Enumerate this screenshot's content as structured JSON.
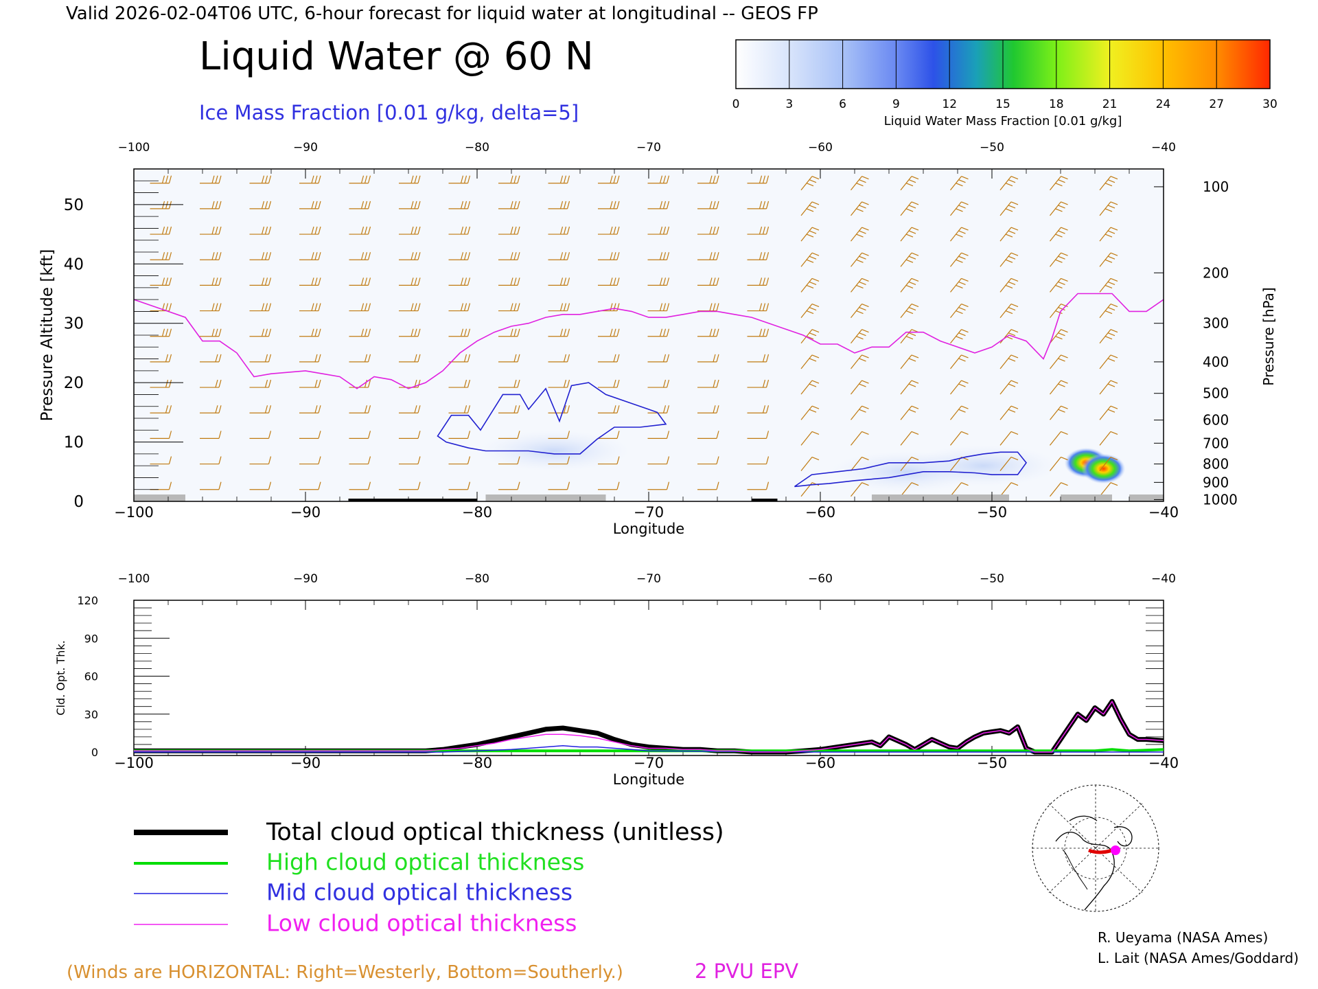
{
  "header": {
    "valid_line": "Valid 2026-02-04T06 UTC, 6-hour forecast for liquid water at longitudinal -- GEOS FP",
    "title": "Liquid Water @ 60 N",
    "subtitle": "Ice Mass Fraction [0.01 g/kg, delta=5]"
  },
  "colorbar": {
    "ticks": [
      "0",
      "3",
      "6",
      "9",
      "12",
      "15",
      "18",
      "21",
      "24",
      "27",
      "30"
    ],
    "label": "Liquid Water Mass Fraction [0.01 g/kg]",
    "colors": [
      "#f4f7fd",
      "#b9cffa",
      "#98b5f5",
      "#4d6ff0",
      "#1b9fd8",
      "#28c528",
      "#88f018",
      "#f0f020",
      "#ffc000",
      "#ff8c00",
      "#ff3000"
    ]
  },
  "chart_data": [
    {
      "type": "heatmap",
      "title": "Liquid Water @ 60 N",
      "xlabel": "Longitude",
      "ylabel": "Pressure Altitude [kft]",
      "y2label": "Pressure [hPa]",
      "xlim": [
        -100,
        -40
      ],
      "ylim": [
        0,
        56
      ],
      "x_ticks": [
        "−100",
        "−90",
        "−80",
        "−70",
        "−60",
        "−50",
        "−40"
      ],
      "y_ticks": [
        "0",
        "10",
        "20",
        "30",
        "40",
        "50"
      ],
      "pressure_ticks": [
        "100",
        "200",
        "300",
        "400",
        "500",
        "600",
        "700",
        "800",
        "900",
        "1000"
      ],
      "pressure_tick_kft": [
        53,
        38.5,
        30,
        23.5,
        18.2,
        13.7,
        9.8,
        6.3,
        3.2,
        0.3
      ],
      "epv_2pvu": {
        "name": "2 PVU EPV",
        "color": "#e020e0",
        "x": [
          -100,
          -98,
          -97,
          -96,
          -95,
          -94,
          -93,
          -92,
          -90,
          -89,
          -88,
          -87,
          -86,
          -85,
          -84,
          -83,
          -82,
          -81,
          -80,
          -79,
          -78,
          -77,
          -76,
          -75,
          -74,
          -73,
          -72,
          -71,
          -70,
          -69,
          -68,
          -67,
          -66,
          -65,
          -64,
          -63,
          -62,
          -61,
          -60,
          -59,
          -58,
          -57,
          -56,
          -55,
          -54,
          -53,
          -52,
          -51,
          -50,
          -49,
          -48,
          -47,
          -46.5,
          -46,
          -45,
          -44,
          -43,
          -42,
          -41,
          -40
        ],
        "y": [
          34,
          32,
          31,
          27,
          27,
          25,
          21,
          21.5,
          22,
          21.5,
          21,
          19,
          21,
          20.5,
          19,
          20,
          22,
          25,
          27,
          28.5,
          29.5,
          30,
          31,
          31.5,
          31.5,
          32,
          32.5,
          32,
          31,
          31,
          31.5,
          32,
          32,
          31.5,
          31,
          30,
          29,
          28,
          26.5,
          26.5,
          25,
          26,
          26,
          28.5,
          28.5,
          27,
          26,
          25,
          26,
          28,
          27,
          24,
          27.5,
          32,
          35,
          35,
          35,
          32,
          32,
          34
        ]
      },
      "mid_cloud_contours": [
        {
          "x": [
            -82.3,
            -81.5,
            -80.5,
            -79.8,
            -78.5,
            -77.5,
            -77.0,
            -76.0,
            -75.2,
            -74.5,
            -73.5,
            -72.5,
            -71.0,
            -70.0,
            -69.5,
            -69.0,
            -70.5,
            -72.0,
            -73.0,
            -74.0,
            -75.5,
            -77.0,
            -78.5,
            -79.5,
            -80.5,
            -81.8,
            -82.3
          ],
          "y": [
            11,
            14.5,
            14.5,
            12,
            18,
            18,
            15.5,
            19,
            13.5,
            19.5,
            20,
            18,
            16.5,
            15.5,
            15,
            13,
            12.5,
            12.5,
            10.5,
            8,
            8,
            8.5,
            8.5,
            8.5,
            9,
            10,
            11
          ]
        },
        {
          "x": [
            -61.5,
            -60.5,
            -59,
            -57.5,
            -56,
            -54,
            -52.5,
            -51.5,
            -50.5,
            -49.5,
            -48.5,
            -48,
            -48.5,
            -50,
            -51,
            -52.5,
            -54,
            -56,
            -58,
            -59.5,
            -60.5,
            -61.5
          ],
          "y": [
            2.5,
            4.5,
            5.0,
            5.5,
            6.5,
            6.5,
            6.8,
            7.5,
            8.0,
            8.3,
            8.3,
            6.5,
            4.5,
            4.5,
            4.8,
            5.0,
            5.0,
            4.0,
            3.5,
            3.0,
            2.8,
            2.5
          ]
        }
      ],
      "liquid_water_blobs": [
        {
          "lon": -75.5,
          "kft": 8.5,
          "value": 4
        },
        {
          "lon": -55,
          "kft": 5,
          "value": 6
        },
        {
          "lon": -50.5,
          "kft": 6,
          "value": 7
        },
        {
          "lon": -44.5,
          "kft": 6.5,
          "value": 25
        },
        {
          "lon": -43.5,
          "kft": 5.5,
          "value": 30
        }
      ],
      "wind_barb_color": "#c07a10"
    },
    {
      "type": "line",
      "xlabel": "Longitude",
      "ylabel": "Cld. Opt. Thk.",
      "xlim": [
        -100,
        -40
      ],
      "ylim": [
        0,
        120
      ],
      "x_ticks": [
        "−100",
        "−90",
        "−80",
        "−70",
        "−60",
        "−50",
        "−40"
      ],
      "y_ticks": [
        "0",
        "30",
        "60",
        "90",
        "120"
      ],
      "series": [
        {
          "name": "Total cloud optical thickness (unitless)",
          "color": "#000000",
          "x": [
            -100,
            -83,
            -82,
            -81,
            -80,
            -79,
            -78,
            -77,
            -76,
            -75,
            -74,
            -73,
            -72,
            -71,
            -70,
            -69,
            -68,
            -67,
            -66,
            -65,
            -64,
            -63,
            -62,
            -61,
            -60,
            -59,
            -58,
            -57,
            -56.5,
            -56,
            -55.5,
            -55,
            -54.5,
            -54,
            -53.5,
            -53,
            -52.5,
            -52,
            -51.5,
            -51,
            -50.5,
            -50,
            -49.5,
            -49,
            -48.5,
            -48,
            -47.5,
            -47,
            -46.5,
            -46,
            -45.5,
            -45,
            -44.5,
            -44,
            -43.5,
            -43,
            -42.5,
            -42,
            -41.5,
            -41,
            -40
          ],
          "y": [
            1,
            1,
            2,
            4,
            6,
            9,
            12,
            15,
            18,
            19,
            17,
            15,
            10,
            6,
            4,
            3,
            2,
            2,
            1,
            1,
            0,
            0,
            0,
            1,
            2,
            4,
            6,
            8,
            5,
            12,
            9,
            6,
            2,
            6,
            10,
            7,
            4,
            3,
            8,
            12,
            15,
            16,
            17,
            15,
            20,
            3,
            0,
            0,
            0,
            10,
            20,
            30,
            25,
            35,
            30,
            40,
            26,
            14,
            10,
            10,
            9
          ]
        },
        {
          "name": "High cloud optical thickness",
          "color": "#00dd00",
          "x": [
            -100,
            -90,
            -80,
            -70,
            -60,
            -50,
            -47,
            -46,
            -44,
            -43,
            -42,
            -40
          ],
          "y": [
            1,
            1,
            1,
            1,
            1,
            1,
            1,
            1,
            1,
            2,
            1,
            2
          ]
        },
        {
          "name": "Mid cloud optical thickness",
          "color": "#2020e0",
          "x": [
            -100,
            -82,
            -80,
            -78,
            -77,
            -76,
            -75,
            -74,
            -73,
            -72,
            -71,
            -70,
            -60,
            -40
          ],
          "y": [
            0,
            0,
            1,
            2,
            3,
            4,
            5,
            4,
            4,
            3,
            2,
            1,
            0,
            0
          ]
        },
        {
          "name": "Low cloud optical thickness",
          "color": "#f020f0",
          "x": [
            -100,
            -83,
            -82,
            -81,
            -80,
            -79,
            -78,
            -77,
            -76,
            -75,
            -74,
            -73,
            -72,
            -71,
            -70,
            -69,
            -68,
            -67,
            -66,
            -65,
            -64,
            -63,
            -62,
            -61,
            -60,
            -59,
            -58,
            -57,
            -56.5,
            -56,
            -55.5,
            -55,
            -54.5,
            -54,
            -53.5,
            -53,
            -52.5,
            -52,
            -51.5,
            -51,
            -50.5,
            -50,
            -49.5,
            -49,
            -48.5,
            -48,
            -47.5,
            -47,
            -46.5,
            -46,
            -45.5,
            -45,
            -44.5,
            -44,
            -43.5,
            -43,
            -42.5,
            -42,
            -41.5,
            -41,
            -40
          ],
          "y": [
            1,
            1,
            2,
            3,
            5,
            7,
            10,
            12,
            14,
            14,
            13,
            11,
            8,
            5,
            3,
            3,
            2,
            2,
            1,
            1,
            0,
            0,
            0,
            1,
            2,
            4,
            6,
            8,
            5,
            12,
            9,
            6,
            2,
            6,
            10,
            7,
            4,
            3,
            8,
            12,
            15,
            16,
            17,
            15,
            20,
            3,
            0,
            0,
            0,
            10,
            20,
            30,
            25,
            35,
            30,
            40,
            26,
            14,
            10,
            10,
            9
          ]
        }
      ]
    }
  ],
  "legend": {
    "total": "Total cloud optical thickness (unitless)",
    "high": "High cloud optical thickness",
    "mid": "Mid cloud optical thickness",
    "low": "Low cloud optical thickness"
  },
  "footer": {
    "winds_note": "(Winds are HORIZONTAL: Right=Westerly, Bottom=Southerly.)",
    "epv_label": "2 PVU EPV",
    "credit1": "R. Ueyama (NASA Ames)",
    "credit2": "L. Lait (NASA Ames/Goddard)"
  }
}
